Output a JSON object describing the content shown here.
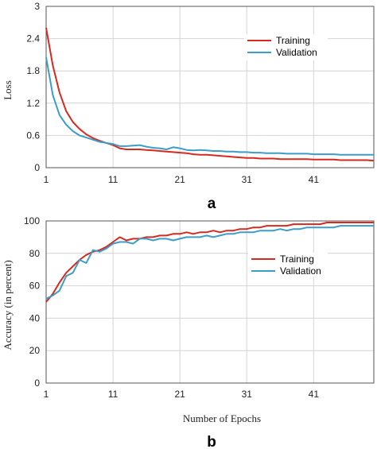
{
  "chart_data": [
    {
      "type": "line",
      "panel_label": "a",
      "xlabel": "",
      "ylabel": "Loss",
      "xlim": [
        1,
        50
      ],
      "ylim": [
        0,
        3
      ],
      "x_ticks": [
        1,
        11,
        21,
        31,
        41
      ],
      "y_ticks": [
        0,
        0.6,
        1.2,
        1.8,
        2.4,
        3
      ],
      "y_tick_labels": [
        "0",
        "0.6",
        "1.2",
        "1.8",
        "2.4",
        "3"
      ],
      "grid": true,
      "legend_position": "top-right",
      "x": [
        1,
        2,
        3,
        4,
        5,
        6,
        7,
        8,
        9,
        10,
        11,
        12,
        13,
        14,
        15,
        16,
        17,
        18,
        19,
        20,
        21,
        22,
        23,
        24,
        25,
        26,
        27,
        28,
        29,
        30,
        31,
        32,
        33,
        34,
        35,
        36,
        37,
        38,
        39,
        40,
        41,
        42,
        43,
        44,
        45,
        46,
        47,
        48,
        49,
        50
      ],
      "series": [
        {
          "name": "Training",
          "color": "#d62a1e",
          "values": [
            2.6,
            1.9,
            1.4,
            1.05,
            0.85,
            0.72,
            0.62,
            0.55,
            0.5,
            0.46,
            0.42,
            0.36,
            0.34,
            0.34,
            0.34,
            0.33,
            0.32,
            0.31,
            0.3,
            0.29,
            0.28,
            0.27,
            0.25,
            0.24,
            0.24,
            0.23,
            0.22,
            0.21,
            0.2,
            0.19,
            0.18,
            0.18,
            0.17,
            0.17,
            0.17,
            0.16,
            0.16,
            0.16,
            0.16,
            0.16,
            0.15,
            0.15,
            0.15,
            0.15,
            0.14,
            0.14,
            0.14,
            0.14,
            0.14,
            0.13
          ]
        },
        {
          "name": "Validation",
          "color": "#3d9dc9",
          "values": [
            2.05,
            1.35,
            0.98,
            0.8,
            0.68,
            0.6,
            0.56,
            0.52,
            0.48,
            0.46,
            0.44,
            0.4,
            0.4,
            0.41,
            0.42,
            0.39,
            0.37,
            0.36,
            0.34,
            0.38,
            0.36,
            0.33,
            0.32,
            0.33,
            0.32,
            0.31,
            0.31,
            0.3,
            0.3,
            0.29,
            0.29,
            0.28,
            0.28,
            0.27,
            0.27,
            0.27,
            0.26,
            0.26,
            0.26,
            0.26,
            0.25,
            0.25,
            0.25,
            0.25,
            0.24,
            0.24,
            0.24,
            0.24,
            0.24,
            0.24
          ]
        }
      ]
    },
    {
      "type": "line",
      "panel_label": "b",
      "xlabel": "Number of Epochs",
      "ylabel": "Accuracy (in percent)",
      "xlim": [
        1,
        50
      ],
      "ylim": [
        0,
        100
      ],
      "x_ticks": [
        1,
        11,
        21,
        31,
        41
      ],
      "y_ticks": [
        0,
        20,
        40,
        60,
        80,
        100
      ],
      "y_tick_labels": [
        "0",
        "20",
        "40",
        "60",
        "80",
        "100"
      ],
      "grid": true,
      "legend_position": "top-right",
      "x": [
        1,
        2,
        3,
        4,
        5,
        6,
        7,
        8,
        9,
        10,
        11,
        12,
        13,
        14,
        15,
        16,
        17,
        18,
        19,
        20,
        21,
        22,
        23,
        24,
        25,
        26,
        27,
        28,
        29,
        30,
        31,
        32,
        33,
        34,
        35,
        36,
        37,
        38,
        39,
        40,
        41,
        42,
        43,
        44,
        45,
        46,
        47,
        48,
        49,
        50
      ],
      "series": [
        {
          "name": "Training",
          "color": "#d62a1e",
          "values": [
            50,
            55,
            62,
            68,
            72,
            76,
            79,
            81,
            82,
            84,
            87,
            90,
            88,
            89,
            89,
            90,
            90,
            91,
            91,
            92,
            92,
            93,
            92,
            93,
            93,
            94,
            93,
            94,
            94,
            95,
            95,
            96,
            96,
            97,
            97,
            97,
            97,
            98,
            98,
            98,
            98,
            98,
            99,
            99,
            99,
            99,
            99,
            99,
            99,
            99
          ]
        },
        {
          "name": "Validation",
          "color": "#3d9dc9",
          "values": [
            52,
            54,
            57,
            66,
            68,
            76,
            74,
            82,
            81,
            83,
            86,
            87,
            87,
            86,
            89,
            89,
            88,
            89,
            89,
            88,
            89,
            90,
            90,
            90,
            91,
            90,
            91,
            92,
            92,
            93,
            93,
            93,
            94,
            94,
            94,
            95,
            94,
            95,
            95,
            96,
            96,
            96,
            96,
            96,
            97,
            97,
            97,
            97,
            97,
            97
          ]
        }
      ]
    }
  ]
}
